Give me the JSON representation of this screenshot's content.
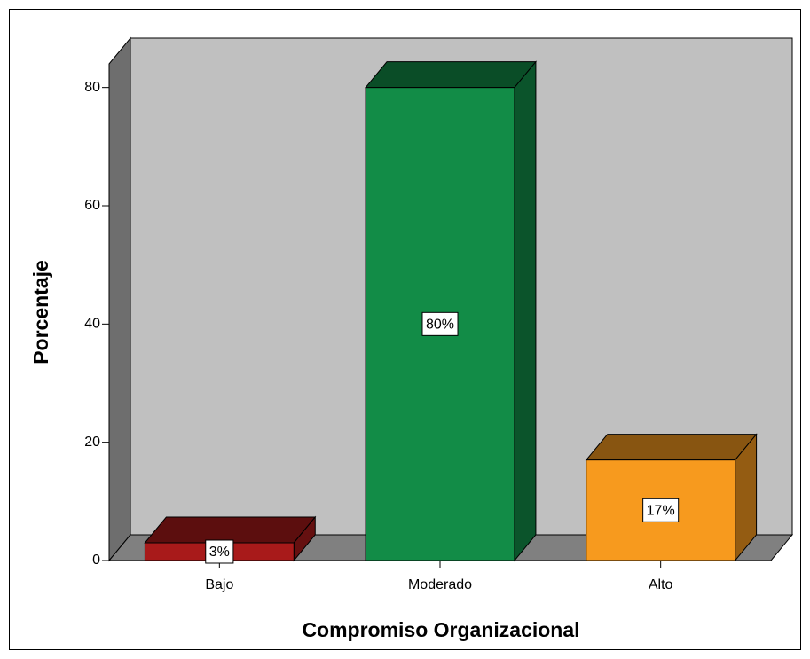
{
  "chart_data": {
    "type": "bar3d",
    "x_label": "Compromiso Organizacional",
    "y_label": "Porcentaje",
    "categories": [
      "Bajo",
      "Moderado",
      "Alto"
    ],
    "values": [
      3,
      80,
      17
    ],
    "value_labels": [
      "3%",
      "80%",
      "17%"
    ],
    "colors": [
      "#a81a1a",
      "#128c47",
      "#f79a1e"
    ],
    "ylim": [
      0,
      84
    ],
    "yticks": [
      0,
      20,
      40,
      60,
      80
    ]
  }
}
